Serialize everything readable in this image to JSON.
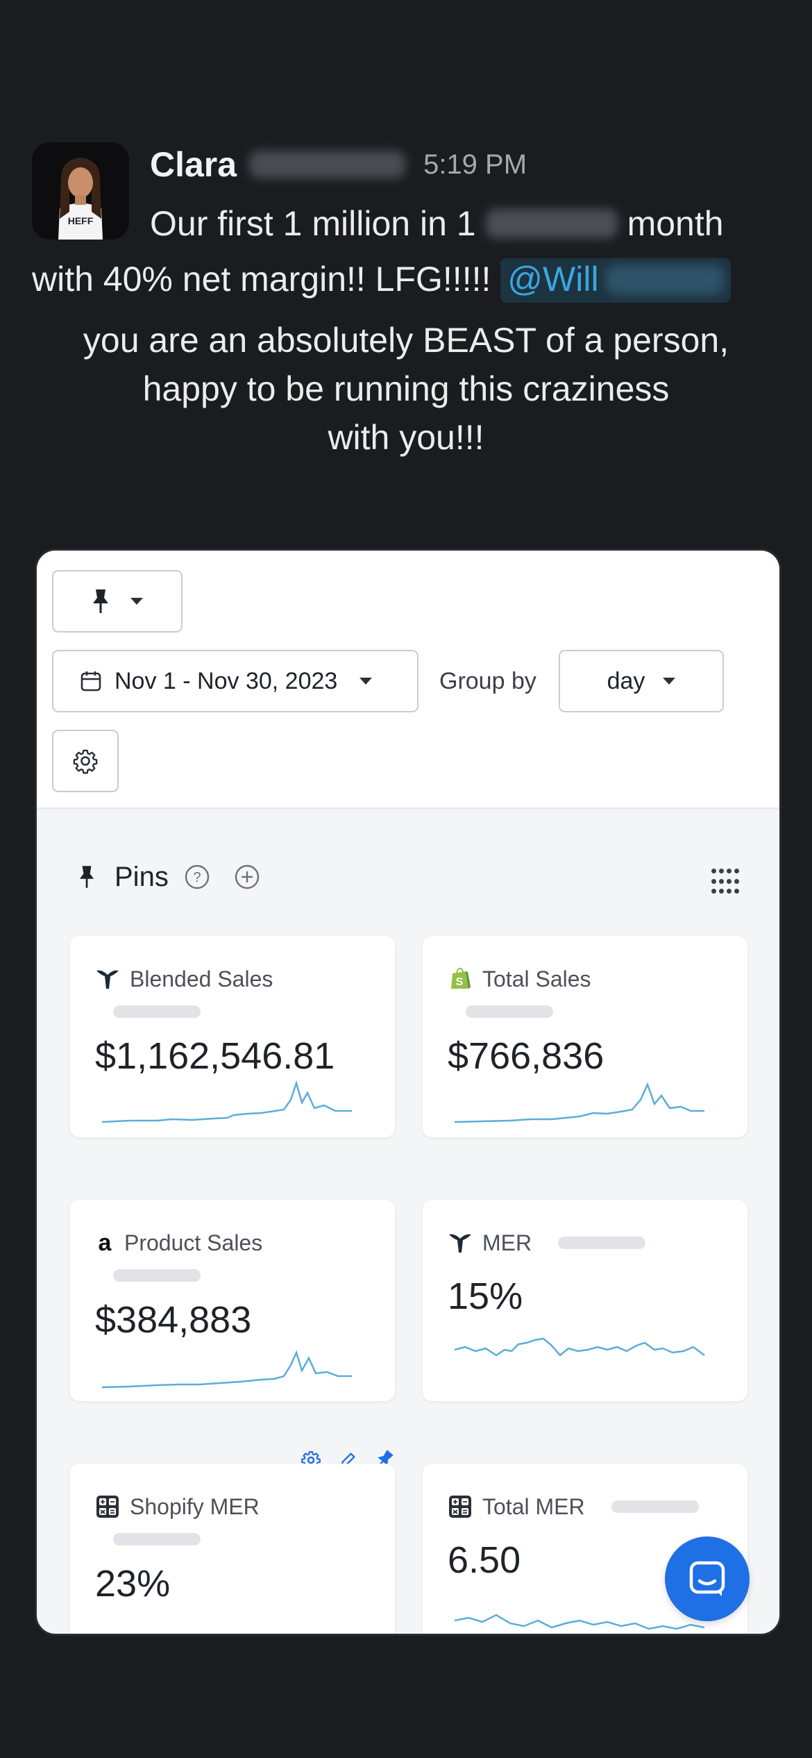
{
  "message": {
    "sender": "Clara",
    "time": "5:19 PM",
    "line1_before": "Our first 1 million in 1",
    "line1_after": "month",
    "line2_text": "with 40% net margin!! LFG!!!!!",
    "mention": "@Will",
    "line3": "you are an absolutely BEAST of a person,",
    "line4": "happy to be running this craziness",
    "line5": "with you!!!"
  },
  "dashboard": {
    "date_range": "Nov 1 - Nov 30, 2023",
    "group_by_label": "Group by",
    "group_by_value": "day",
    "pins_title": "Pins",
    "cards": [
      {
        "title": "Blended Sales",
        "value": "$1,162,546.81",
        "icon": "triple-whale-logo"
      },
      {
        "title": "Total Sales",
        "value": "$766,836",
        "icon": "shopify-logo"
      },
      {
        "title": "Product Sales",
        "value": "$384,883",
        "icon": "amazon-logo",
        "glyph": "a"
      },
      {
        "title": "MER",
        "value": "15%",
        "icon": "triple-whale-logo"
      },
      {
        "title": "Shopify MER",
        "value": "23%",
        "icon": "calculator-icon"
      },
      {
        "title": "Total MER",
        "value": "6.50",
        "icon": "calculator-icon"
      }
    ]
  },
  "colors": {
    "background": "#1b1c20",
    "mention": "#3aa6e0",
    "sparkline": "#5aaed6",
    "chat_button": "#1f6fe5",
    "pin_active": "#1f6fe5",
    "shopify_green": "#95bf47"
  }
}
